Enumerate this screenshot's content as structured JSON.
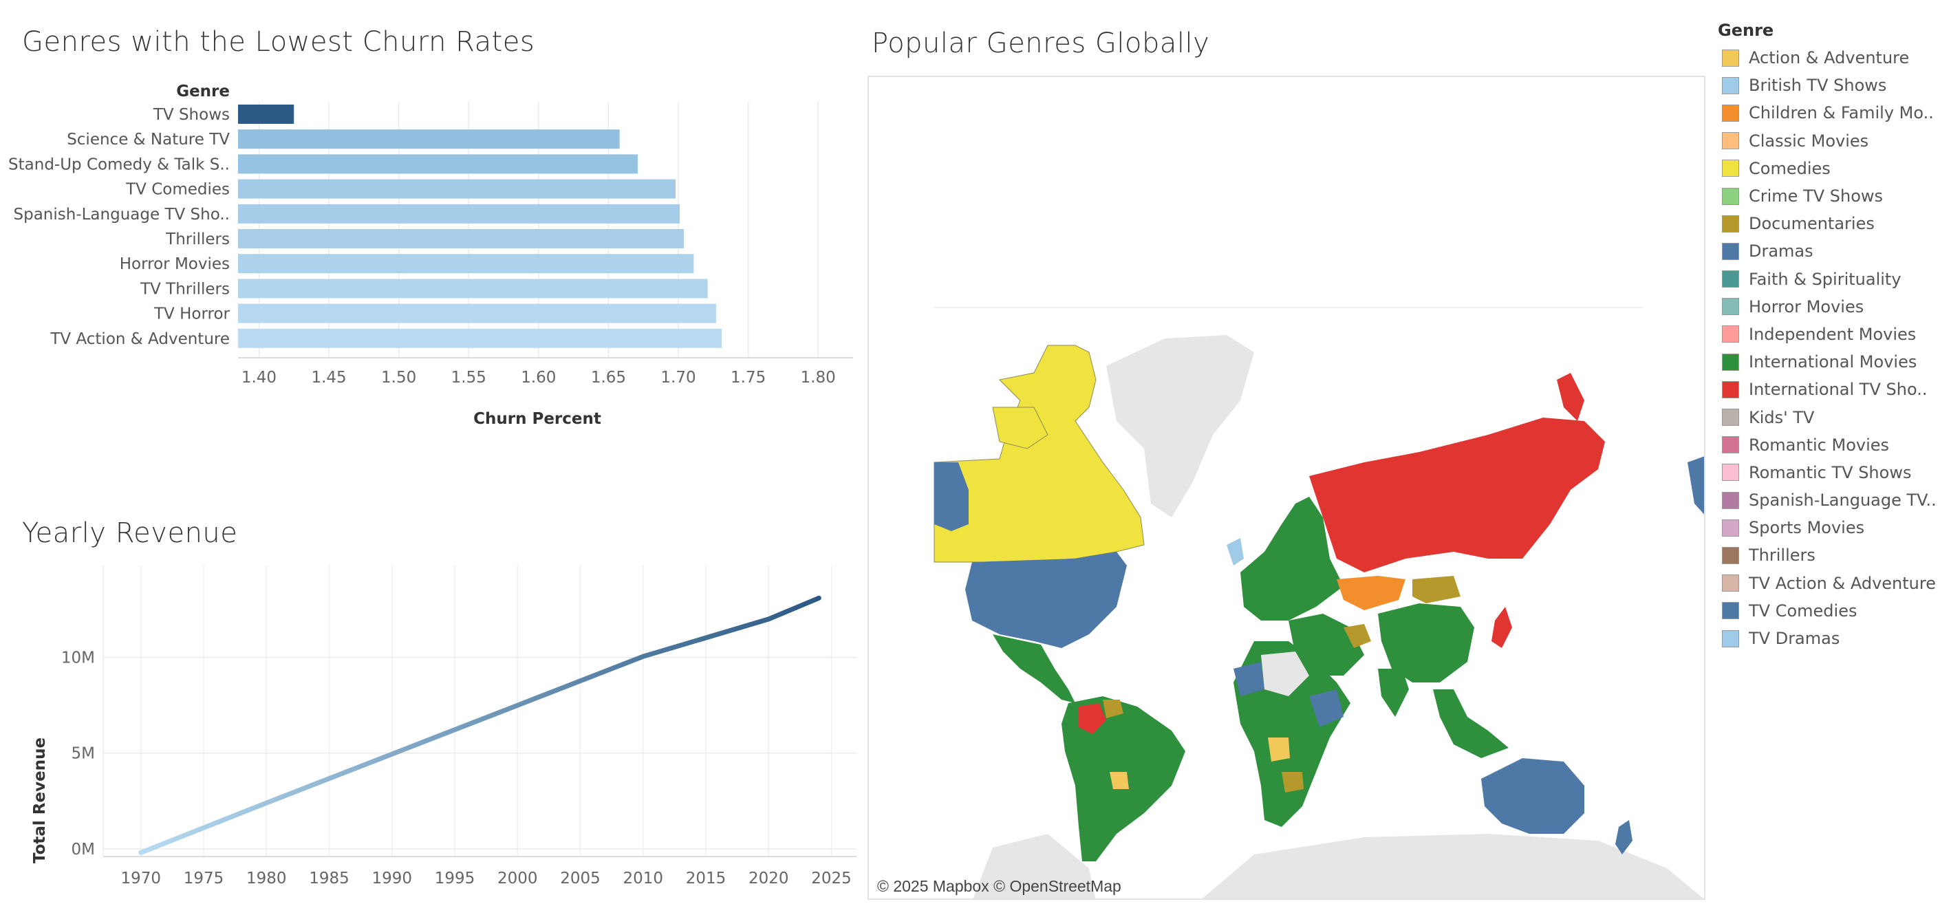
{
  "panels": {
    "churn_title": "Genres with the Lowest Churn Rates",
    "revenue_title": "Yearly Revenue",
    "map_title": "Popular Genres Globally"
  },
  "chart_data": [
    {
      "type": "bar",
      "orientation": "horizontal",
      "title": "Genres with the Lowest Churn Rates",
      "category_header": "Genre",
      "xlabel": "Churn Percent",
      "xlim": [
        1.385,
        1.825
      ],
      "ticks": [
        "1.40",
        "1.45",
        "1.50",
        "1.55",
        "1.60",
        "1.65",
        "1.70",
        "1.75",
        "1.80"
      ],
      "tick_values": [
        1.4,
        1.45,
        1.5,
        1.55,
        1.6,
        1.65,
        1.7,
        1.75,
        1.8
      ],
      "grid": true,
      "categories": [
        "TV Shows",
        "Science & Nature TV",
        "Stand-Up Comedy & Talk S..",
        "TV Comedies",
        "Spanish-Language TV Sho..",
        "Thrillers",
        "Horror Movies",
        "TV Thrillers",
        "TV Horror",
        "TV Action & Adventure"
      ],
      "values": [
        1.425,
        1.658,
        1.671,
        1.698,
        1.701,
        1.704,
        1.711,
        1.721,
        1.727,
        1.731
      ],
      "colors": [
        "#2e5a87",
        "#92bfe0",
        "#97c3e3",
        "#a3cbe8",
        "#a5cce8",
        "#a8cee9",
        "#acd2ec",
        "#b2d5ee",
        "#b6d8f0",
        "#b9daf1"
      ]
    },
    {
      "type": "line",
      "title": "Yearly Revenue",
      "ylabel": "Total Revenue",
      "xlabel": "",
      "x": [
        1970,
        1980,
        1990,
        2000,
        2010,
        2020,
        2024
      ],
      "y": [
        -200000,
        2400000,
        4950000,
        7500000,
        10050000,
        12000000,
        13100000
      ],
      "xticks": [
        1970,
        1975,
        1980,
        1985,
        1990,
        1995,
        2000,
        2005,
        2010,
        2015,
        2020,
        2025
      ],
      "yticks": [
        0,
        5000000,
        10000000
      ],
      "ytick_labels": [
        "0M",
        "5M",
        "10M"
      ],
      "xlim": [
        1967,
        2027
      ],
      "ylim": [
        -400000,
        14800000
      ],
      "grid": true,
      "gradient": [
        "#b7dbf2",
        "#2c5883"
      ]
    }
  ],
  "map": {
    "attribution": "© 2025 Mapbox © OpenStreetMap"
  },
  "legend": {
    "title": "Genre",
    "items": [
      {
        "label": "Action & Adventure",
        "color": "#f2c85b"
      },
      {
        "label": "British TV Shows",
        "color": "#a0cbe8"
      },
      {
        "label": "Children & Family Mo..",
        "color": "#f28e2b"
      },
      {
        "label": "Classic Movies",
        "color": "#ffbe7d"
      },
      {
        "label": "Comedies",
        "color": "#f1e33f"
      },
      {
        "label": "Crime TV Shows",
        "color": "#8cd17d"
      },
      {
        "label": "Documentaries",
        "color": "#b6992d"
      },
      {
        "label": "Dramas",
        "color": "#4e79a7"
      },
      {
        "label": "Faith & Spirituality",
        "color": "#499894"
      },
      {
        "label": "Horror Movies",
        "color": "#86bcb6"
      },
      {
        "label": "Independent Movies",
        "color": "#ff9d9a"
      },
      {
        "label": "International Movies",
        "color": "#2e8f3c"
      },
      {
        "label": "International TV Sho..",
        "color": "#e03531"
      },
      {
        "label": "Kids' TV",
        "color": "#bab0ac"
      },
      {
        "label": "Romantic Movies",
        "color": "#d37295"
      },
      {
        "label": "Romantic TV Shows",
        "color": "#fabfd2"
      },
      {
        "label": "Spanish-Language TV..",
        "color": "#b07aa1"
      },
      {
        "label": "Sports Movies",
        "color": "#d4a6c8"
      },
      {
        "label": "Thrillers",
        "color": "#9d7660"
      },
      {
        "label": "TV Action & Adventure",
        "color": "#d7b5a6"
      },
      {
        "label": "TV Comedies",
        "color": "#4e79a7"
      },
      {
        "label": "TV Dramas",
        "color": "#a0cbe8"
      }
    ]
  }
}
